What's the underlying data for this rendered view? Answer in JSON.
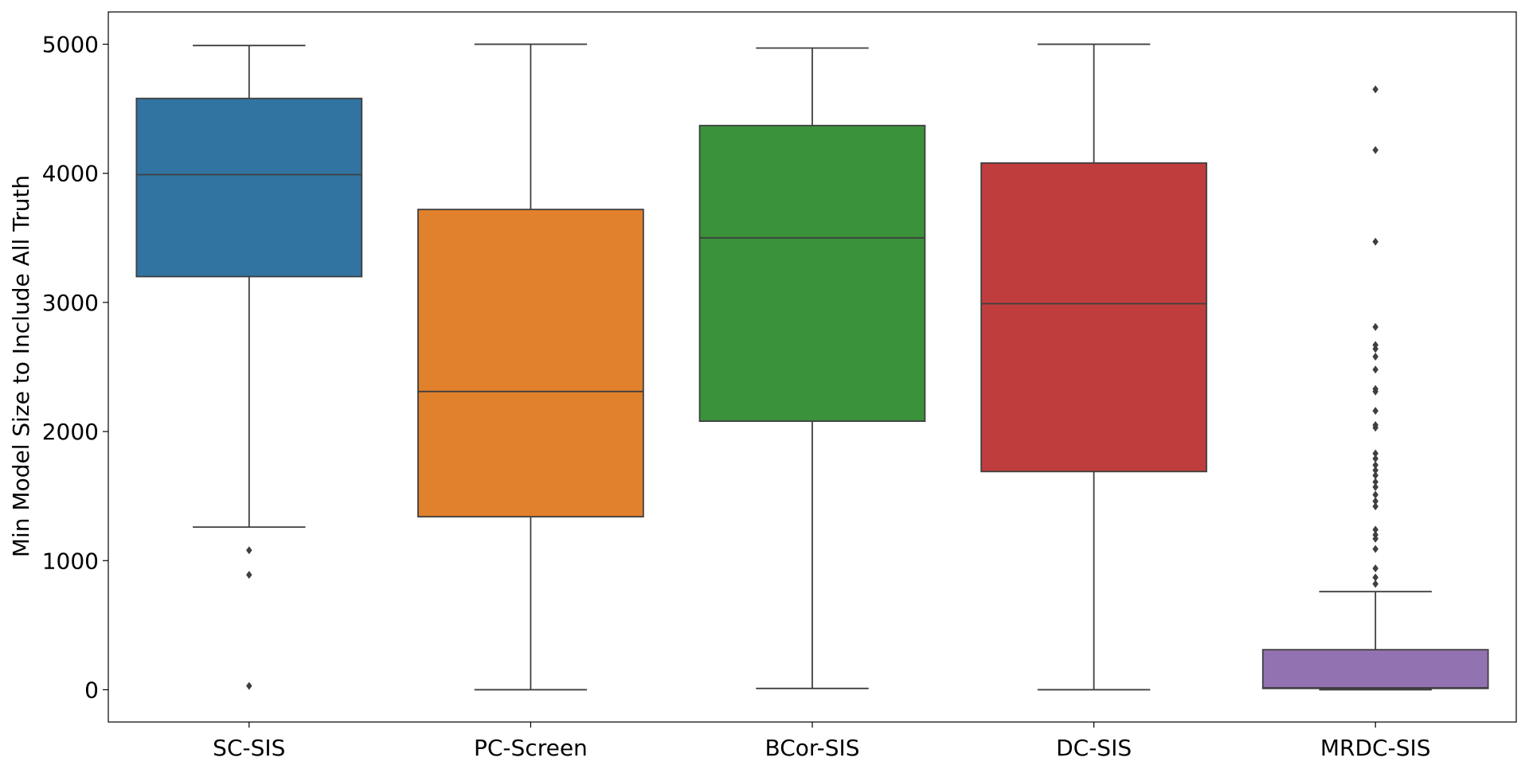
{
  "chart_data": {
    "type": "box",
    "title": "",
    "xlabel": "",
    "ylabel": "Min Model Size to Include All Truth",
    "ylim": [
      -250,
      5250
    ],
    "yticks": [
      0,
      1000,
      2000,
      3000,
      4000,
      5000
    ],
    "grid": false,
    "legend": "none",
    "categories": [
      "SC-SIS",
      "PC-Screen",
      "BCor-SIS",
      "DC-SIS",
      "MRDC-SIS"
    ],
    "colors": [
      "#3274a1",
      "#e1812c",
      "#3a923a",
      "#c03d3e",
      "#9372b2"
    ],
    "edge_color": "#3f3f3f",
    "boxes": [
      {
        "whisker_low": 1260,
        "q1": 3200,
        "median": 3990,
        "q3": 4580,
        "whisker_high": 4990,
        "outliers": [
          1080,
          890,
          30
        ]
      },
      {
        "whisker_low": 0,
        "q1": 1340,
        "median": 2310,
        "q3": 3720,
        "whisker_high": 5000,
        "outliers": []
      },
      {
        "whisker_low": 10,
        "q1": 2080,
        "median": 3500,
        "q3": 4370,
        "whisker_high": 4970,
        "outliers": []
      },
      {
        "whisker_low": 0,
        "q1": 1690,
        "median": 2990,
        "q3": 4080,
        "whisker_high": 5000,
        "outliers": []
      },
      {
        "whisker_low": 0,
        "q1": 10,
        "median": 15,
        "q3": 310,
        "whisker_high": 760,
        "outliers": [
          4650,
          4180,
          3470,
          2810,
          2670,
          2640,
          2580,
          2480,
          2330,
          2310,
          2160,
          2050,
          2030,
          1830,
          1790,
          1740,
          1700,
          1660,
          1610,
          1570,
          1510,
          1460,
          1420,
          1240,
          1200,
          1170,
          1090,
          940,
          870,
          820
        ]
      }
    ]
  }
}
